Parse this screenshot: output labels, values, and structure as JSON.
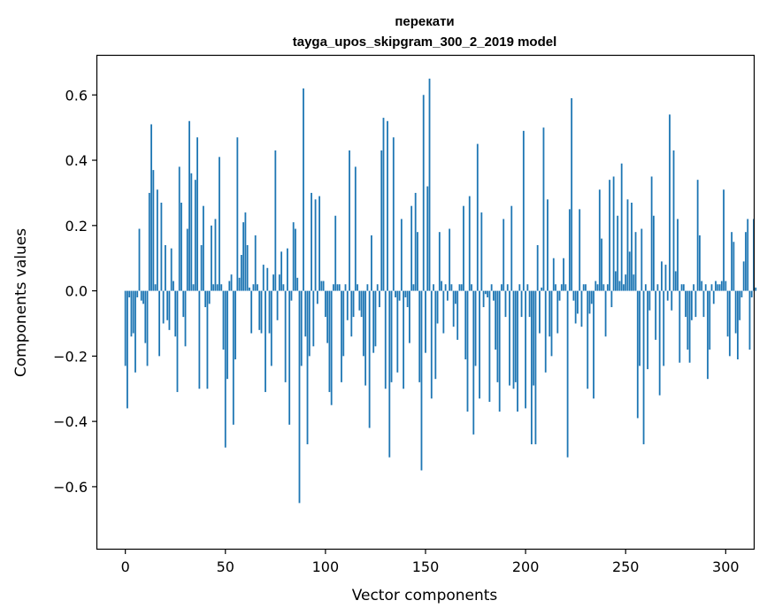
{
  "chart_data": {
    "type": "bar",
    "title": "перекати",
    "subtitle": "tayga_upos_skipgram_300_2_2019 model",
    "xlabel": "Vector components",
    "ylabel": "Components values",
    "xlim": [
      -14,
      314
    ],
    "ylim": [
      -0.79,
      0.72
    ],
    "xticks": [
      0,
      50,
      100,
      150,
      200,
      250,
      300
    ],
    "xtick_labels": [
      "0",
      "50",
      "100",
      "150",
      "200",
      "250",
      "300"
    ],
    "yticks": [
      -0.6,
      -0.4,
      -0.2,
      0.0,
      0.2,
      0.4,
      0.6
    ],
    "ytick_labels": [
      "−0.6",
      "−0.4",
      "−0.2",
      "0.0",
      "0.2",
      "0.4",
      "0.6"
    ],
    "bar_color": "#1f77b4",
    "values": [
      -0.23,
      -0.36,
      -0.02,
      -0.14,
      -0.13,
      -0.25,
      -0.02,
      0.19,
      -0.03,
      -0.04,
      -0.16,
      -0.23,
      0.3,
      0.51,
      0.37,
      0.02,
      0.31,
      -0.2,
      0.27,
      -0.1,
      0.14,
      -0.09,
      -0.12,
      0.13,
      0.03,
      -0.14,
      -0.31,
      0.38,
      0.27,
      -0.08,
      -0.17,
      0.19,
      0.52,
      0.36,
      0.02,
      0.34,
      0.47,
      -0.3,
      0.14,
      0.26,
      -0.05,
      -0.3,
      -0.04,
      0.2,
      0.02,
      0.22,
      0.02,
      0.41,
      0.02,
      -0.18,
      -0.48,
      -0.27,
      0.03,
      0.05,
      -0.41,
      -0.21,
      0.47,
      0.04,
      0.11,
      0.21,
      0.24,
      0.14,
      0.01,
      -0.13,
      0.02,
      0.17,
      0.02,
      -0.12,
      -0.13,
      0.08,
      -0.31,
      0.07,
      -0.13,
      -0.23,
      0.05,
      0.43,
      -0.09,
      0.05,
      0.12,
      0.02,
      -0.28,
      0.13,
      -0.41,
      -0.03,
      0.21,
      0.19,
      0.04,
      -0.65,
      -0.23,
      0.62,
      -0.14,
      -0.47,
      -0.2,
      0.3,
      -0.17,
      0.28,
      -0.04,
      0.29,
      0.03,
      0.03,
      -0.08,
      -0.16,
      -0.31,
      -0.35,
      0.02,
      0.23,
      0.02,
      0.02,
      -0.28,
      -0.2,
      0.02,
      -0.09,
      0.43,
      -0.14,
      -0.08,
      0.38,
      0.02,
      -0.06,
      -0.08,
      -0.2,
      -0.29,
      0.02,
      -0.42,
      0.17,
      -0.19,
      -0.17,
      0.02,
      -0.05,
      0.43,
      0.53,
      -0.3,
      0.52,
      -0.51,
      -0.28,
      0.47,
      -0.02,
      -0.25,
      -0.03,
      0.22,
      -0.3,
      -0.02,
      -0.05,
      -0.16,
      0.26,
      0.02,
      0.3,
      0.18,
      -0.28,
      -0.55,
      0.6,
      -0.19,
      0.32,
      0.65,
      -0.33,
      0.02,
      -0.27,
      -0.1,
      0.18,
      0.03,
      -0.13,
      0.02,
      -0.03,
      0.19,
      0.02,
      -0.11,
      -0.04,
      -0.15,
      0.02,
      0.02,
      0.26,
      -0.21,
      -0.37,
      0.29,
      0.02,
      -0.44,
      -0.23,
      0.45,
      -0.33,
      0.24,
      -0.05,
      -0.01,
      -0.02,
      -0.34,
      0.02,
      -0.03,
      -0.18,
      -0.28,
      -0.37,
      0.02,
      0.22,
      -0.08,
      0.02,
      -0.29,
      0.26,
      -0.3,
      -0.28,
      -0.37,
      0.02,
      -0.08,
      0.49,
      -0.36,
      0.02,
      -0.08,
      -0.47,
      -0.29,
      -0.47,
      0.14,
      -0.13,
      0.01,
      0.5,
      -0.25,
      0.28,
      -0.14,
      -0.2,
      0.1,
      0.02,
      -0.13,
      -0.03,
      0.02,
      0.1,
      0.02,
      -0.51,
      0.25,
      0.59,
      -0.03,
      -0.1,
      -0.07,
      0.25,
      -0.11,
      0.02,
      0.02,
      -0.3,
      -0.07,
      -0.04,
      -0.33,
      0.03,
      0.02,
      0.31,
      0.16,
      0.02,
      -0.14,
      0.02,
      0.34,
      -0.05,
      0.35,
      0.06,
      0.23,
      0.03,
      0.39,
      0.02,
      0.05,
      0.28,
      0.12,
      0.27,
      0.05,
      0.18,
      -0.39,
      -0.23,
      0.19,
      -0.47,
      0.02,
      -0.24,
      -0.06,
      0.35,
      0.23,
      -0.15,
      0.02,
      -0.32,
      0.09,
      -0.23,
      0.08,
      -0.03,
      0.54,
      -0.06,
      0.43,
      0.06,
      0.22,
      -0.22,
      0.02,
      0.02,
      -0.08,
      -0.18,
      -0.22,
      -0.09,
      0.02,
      -0.08,
      0.34,
      0.17,
      0.03,
      -0.08,
      0.02,
      -0.27,
      -0.18,
      0.02,
      -0.04,
      0.03,
      0.02,
      0.02,
      0.03,
      0.31,
      0.03,
      -0.14,
      -0.2,
      0.18,
      0.15,
      -0.13,
      -0.21,
      -0.09,
      -0.02,
      0.09,
      0.18,
      0.22,
      -0.18,
      -0.02,
      0.22,
      0.01
    ]
  }
}
